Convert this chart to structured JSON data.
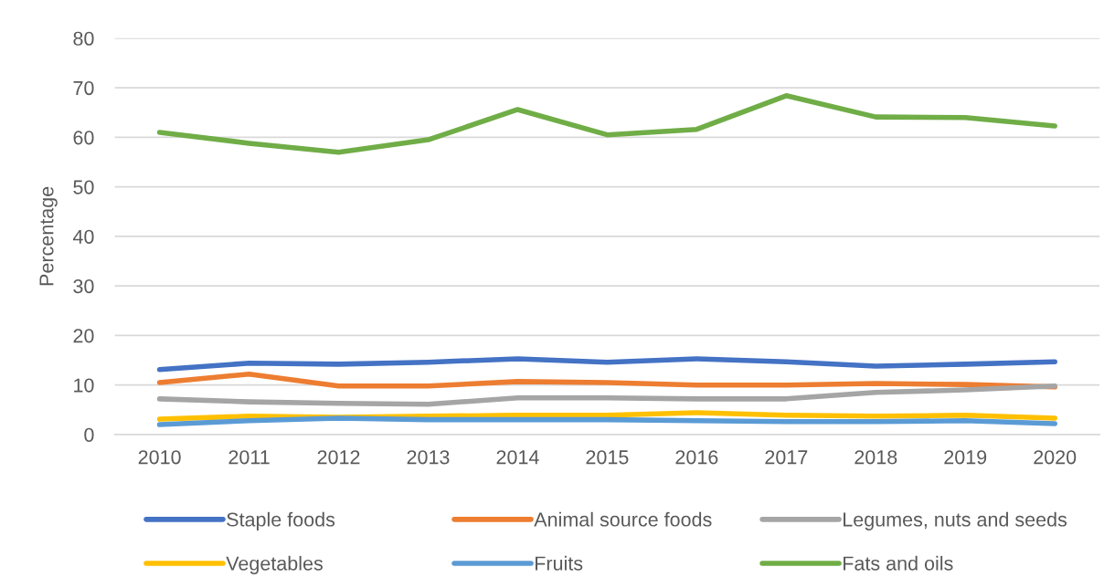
{
  "chart_data": {
    "type": "line",
    "ylabel": "Percentage",
    "categories": [
      "2010",
      "2011",
      "2012",
      "2013",
      "2014",
      "2015",
      "2016",
      "2017",
      "2018",
      "2019",
      "2020"
    ],
    "series": [
      {
        "name": "Staple foods",
        "color": "#4472c4",
        "values": [
          13.1,
          14.4,
          14.2,
          14.6,
          15.3,
          14.6,
          15.3,
          14.7,
          13.8,
          14.2,
          14.7
        ]
      },
      {
        "name": "Animal source foods",
        "color": "#ed7d31",
        "values": [
          10.5,
          12.2,
          9.8,
          9.8,
          10.7,
          10.5,
          10.0,
          10.0,
          10.3,
          10.1,
          9.6
        ]
      },
      {
        "name": "Legumes, nuts and seeds",
        "color": "#a5a5a5",
        "values": [
          7.2,
          6.6,
          6.3,
          6.1,
          7.4,
          7.4,
          7.2,
          7.2,
          8.5,
          9.0,
          9.8
        ]
      },
      {
        "name": "Vegetables",
        "color": "#ffc000",
        "values": [
          3.1,
          3.7,
          3.5,
          3.7,
          3.9,
          3.9,
          4.4,
          3.9,
          3.7,
          3.9,
          3.3
        ]
      },
      {
        "name": "Fruits",
        "color": "#5b9bd5",
        "values": [
          2.0,
          2.8,
          3.3,
          3.0,
          3.0,
          3.0,
          2.8,
          2.6,
          2.6,
          2.8,
          2.2
        ]
      },
      {
        "name": "Fats and oils",
        "color": "#70ad47",
        "values": [
          61.0,
          58.8,
          57.0,
          59.5,
          65.6,
          60.5,
          61.6,
          68.4,
          64.1,
          64.0,
          62.3
        ]
      }
    ],
    "ylim": [
      0,
      80
    ],
    "yticks": [
      0,
      10,
      20,
      30,
      40,
      50,
      60,
      70,
      80
    ],
    "grid": "y",
    "legend": "bottom",
    "line_style": "solid"
  }
}
